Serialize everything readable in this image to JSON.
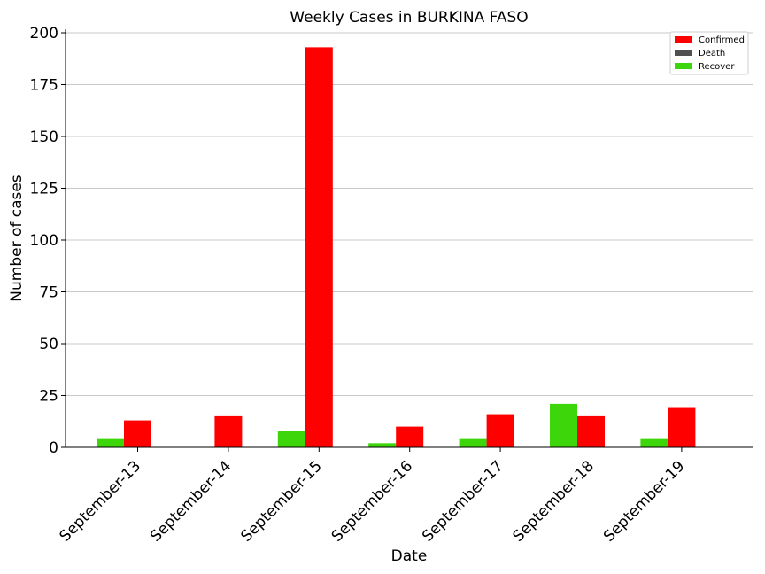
{
  "chart_data": {
    "type": "bar",
    "title": "Weekly Cases in BURKINA FASO",
    "xlabel": "Date",
    "ylabel": "Number of cases",
    "ylim": [
      0,
      200
    ],
    "yticks": [
      0,
      25,
      50,
      75,
      100,
      125,
      150,
      175,
      200
    ],
    "grid": true,
    "legend_position": "top-right",
    "categories": [
      "September-13",
      "September-14",
      "September-15",
      "September-16",
      "September-17",
      "September-18",
      "September-19"
    ],
    "series": [
      {
        "name": "Confirmed",
        "color": "#ff0000",
        "values": [
          13,
          15,
          193,
          10,
          16,
          15,
          19
        ]
      },
      {
        "name": "Death",
        "color": "#505050",
        "values": [
          0,
          0,
          0,
          0,
          0,
          0,
          0
        ]
      },
      {
        "name": "Recover",
        "color": "#3cd60a",
        "values": [
          4,
          0,
          8,
          2,
          4,
          21,
          4
        ]
      }
    ]
  }
}
